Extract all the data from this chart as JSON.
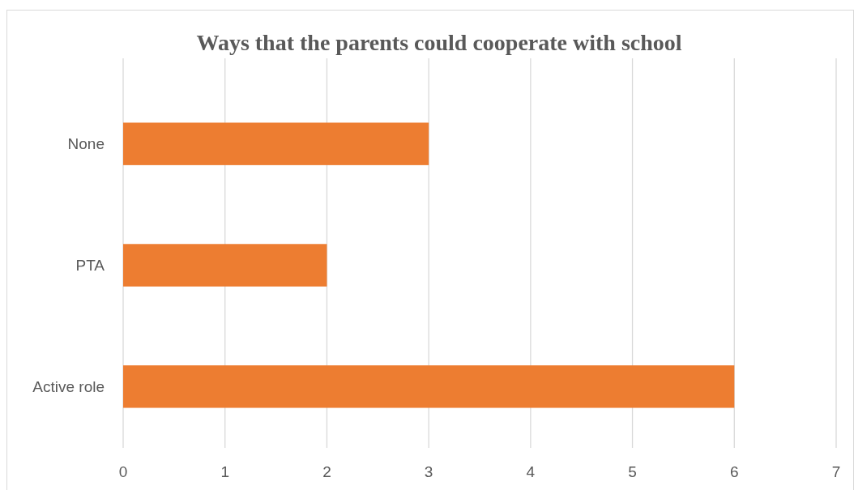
{
  "chart_data": {
    "type": "bar",
    "orientation": "horizontal",
    "title": "Ways that the parents could cooperate with school",
    "categories": [
      "None",
      "PTA",
      "Active role"
    ],
    "values": [
      3,
      2,
      6
    ],
    "color": "#ed7d31",
    "xlim": [
      0,
      7
    ],
    "xticks": [
      0,
      1,
      2,
      3,
      4,
      5,
      6,
      7
    ],
    "grid": "x"
  }
}
